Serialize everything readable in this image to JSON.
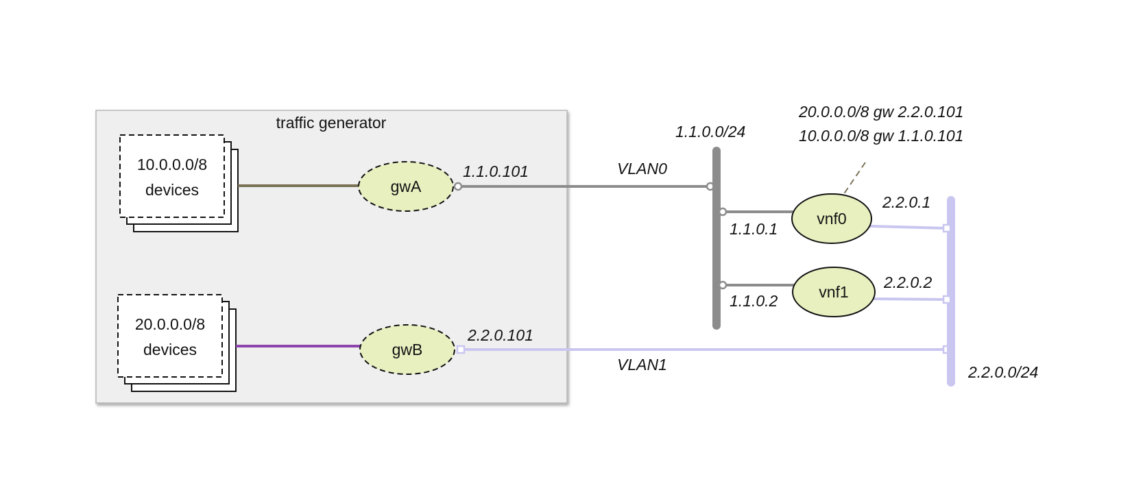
{
  "traffic_generator": {
    "title": "traffic generator",
    "groups": [
      {
        "subnet": "10.0.0.0/8",
        "label": "devices"
      },
      {
        "subnet": "20.0.0.0/8",
        "label": "devices"
      }
    ],
    "gateways": [
      {
        "name": "gwA",
        "ip": "1.1.0.101"
      },
      {
        "name": "gwB",
        "ip": "2.2.0.101"
      }
    ]
  },
  "networks": [
    {
      "subnet": "1.1.0.0/24",
      "vlan": "VLAN0"
    },
    {
      "subnet": "2.2.0.0/24",
      "vlan": "VLAN1"
    }
  ],
  "vnfs": [
    {
      "name": "vnf0",
      "ip_left": "1.1.0.1",
      "ip_right": "2.2.0.1"
    },
    {
      "name": "vnf1",
      "ip_left": "1.1.0.2",
      "ip_right": "2.2.0.2"
    }
  ],
  "routes": [
    "20.0.0.0/8 gw 2.2.0.101",
    "10.0.0.0/8 gw 1.1.0.101"
  ],
  "colors": {
    "box_fill": "#efefef",
    "node_fill": "#e8f0c0",
    "vlan0": "#8c8c8c",
    "vlan1": "#c9c6f0",
    "link_a": "#7a7257",
    "link_b": "#8e44ad"
  }
}
